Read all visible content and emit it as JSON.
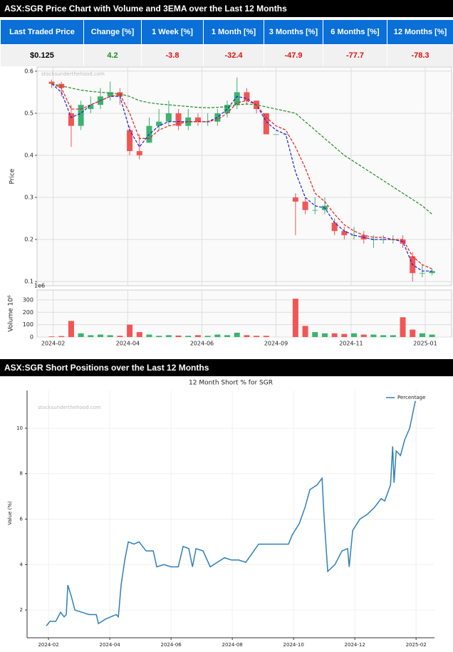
{
  "sections": [
    "ASX:SGR Price Chart with Volume and 3EMA over the Last 12 Months",
    "ASX:SGR Short Positions over the Last 12 Months"
  ],
  "table": {
    "headers": [
      "Last Traded Price",
      "Change [%]",
      "1 Week [%]",
      "1 Month [%]",
      "3 Months [%]",
      "6 Months [%]",
      "12 Months [%]"
    ],
    "rows": [
      [
        "$0.125",
        "4.2",
        "-3.8",
        "-32.4",
        "-47.9",
        "-77.7",
        "-78.3"
      ]
    ]
  },
  "chart_data": [
    {
      "type": "candlestick",
      "ylabel": "Price",
      "watermark": "stocksunderthehood.com",
      "up_color": "#3cb371",
      "down_color": "#f25555",
      "open": [
        0.575,
        0.57,
        0.5,
        0.47,
        0.51,
        0.52,
        0.54,
        0.55,
        0.46,
        0.41,
        0.43,
        0.47,
        0.48,
        0.5,
        0.47,
        0.49,
        0.48,
        0.48,
        0.5,
        0.52,
        0.55,
        0.53,
        0.5,
        0.45,
        0.45,
        0.3,
        0.29,
        0.27,
        0.27,
        0.24,
        0.22,
        0.21,
        0.21,
        0.2,
        0.2,
        0.2,
        0.2,
        0.16,
        0.12,
        0.12
      ],
      "high": [
        0.58,
        0.575,
        0.52,
        0.53,
        0.54,
        0.56,
        0.575,
        0.56,
        0.47,
        0.45,
        0.49,
        0.51,
        0.53,
        0.51,
        0.51,
        0.5,
        0.5,
        0.51,
        0.53,
        0.585,
        0.56,
        0.53,
        0.5,
        0.45,
        0.45,
        0.31,
        0.3,
        0.3,
        0.3,
        0.25,
        0.23,
        0.23,
        0.22,
        0.21,
        0.21,
        0.21,
        0.21,
        0.17,
        0.14,
        0.13
      ],
      "low": [
        0.56,
        0.54,
        0.42,
        0.46,
        0.5,
        0.51,
        0.53,
        0.52,
        0.4,
        0.39,
        0.43,
        0.46,
        0.47,
        0.46,
        0.46,
        0.47,
        0.47,
        0.47,
        0.49,
        0.51,
        0.52,
        0.5,
        0.45,
        0.45,
        0.45,
        0.21,
        0.26,
        0.26,
        0.26,
        0.21,
        0.2,
        0.2,
        0.19,
        0.18,
        0.19,
        0.19,
        0.18,
        0.1,
        0.11,
        0.115
      ],
      "close": [
        0.57,
        0.56,
        0.47,
        0.52,
        0.52,
        0.54,
        0.55,
        0.54,
        0.41,
        0.4,
        0.47,
        0.48,
        0.5,
        0.47,
        0.49,
        0.48,
        0.48,
        0.5,
        0.52,
        0.55,
        0.53,
        0.51,
        0.45,
        0.45,
        0.45,
        0.29,
        0.27,
        0.27,
        0.28,
        0.22,
        0.21,
        0.21,
        0.2,
        0.2,
        0.2,
        0.2,
        0.19,
        0.12,
        0.12,
        0.125
      ],
      "ema": [
        {
          "color": "#1f1fd6",
          "values": [
            0.57,
            0.55,
            0.49,
            0.5,
            0.52,
            0.53,
            0.54,
            0.54,
            0.46,
            0.42,
            0.45,
            0.47,
            0.48,
            0.48,
            0.48,
            0.48,
            0.48,
            0.49,
            0.51,
            0.54,
            0.535,
            0.52,
            0.48,
            0.46,
            0.45,
            0.36,
            0.3,
            0.28,
            0.275,
            0.24,
            0.22,
            0.21,
            0.205,
            0.2,
            0.2,
            0.2,
            0.195,
            0.14,
            0.125,
            0.125
          ]
        },
        {
          "color": "#e01f1f",
          "values": [
            0.57,
            0.56,
            0.51,
            0.51,
            0.52,
            0.53,
            0.54,
            0.545,
            0.5,
            0.44,
            0.44,
            0.46,
            0.47,
            0.475,
            0.48,
            0.48,
            0.48,
            0.485,
            0.5,
            0.525,
            0.53,
            0.52,
            0.49,
            0.47,
            0.46,
            0.42,
            0.37,
            0.31,
            0.29,
            0.26,
            0.235,
            0.22,
            0.21,
            0.205,
            0.205,
            0.2,
            0.2,
            0.16,
            0.14,
            0.13
          ]
        },
        {
          "color": "#228b22",
          "values": [
            0.57,
            0.565,
            0.56,
            0.555,
            0.552,
            0.55,
            0.548,
            0.546,
            0.54,
            0.53,
            0.525,
            0.522,
            0.52,
            0.518,
            0.516,
            0.514,
            0.513,
            0.514,
            0.516,
            0.52,
            0.522,
            0.52,
            0.515,
            0.51,
            0.505,
            0.5,
            0.48,
            0.46,
            0.44,
            0.42,
            0.4,
            0.385,
            0.37,
            0.355,
            0.34,
            0.325,
            0.31,
            0.295,
            0.28,
            0.26
          ]
        }
      ],
      "xlim": [
        -1.5,
        41
      ],
      "ylim": [
        0.09,
        0.61
      ],
      "yticks": [
        0.1,
        0.2,
        0.3,
        0.4,
        0.5,
        0.6
      ],
      "grid": true
    },
    {
      "type": "bar",
      "ylabel": "Volume  10⁶",
      "offset_label": "1e6",
      "values": [
        5,
        8,
        130,
        30,
        15,
        20,
        15,
        10,
        100,
        40,
        20,
        10,
        15,
        12,
        10,
        15,
        10,
        20,
        15,
        35,
        15,
        10,
        10,
        0,
        0,
        310,
        90,
        40,
        30,
        30,
        25,
        30,
        20,
        20,
        15,
        15,
        160,
        60,
        30,
        20
      ],
      "xlim": [
        -1.5,
        41
      ],
      "ylim": [
        0,
        380
      ],
      "yticks": [
        0,
        100,
        200,
        300
      ],
      "grid": true,
      "xticks": [
        {
          "value": 0.15,
          "label": "2024-02"
        },
        {
          "value": 7.8,
          "label": "2024-04"
        },
        {
          "value": 15.4,
          "label": "2024-06"
        },
        {
          "value": 23.0,
          "label": "2024-09"
        },
        {
          "value": 30.7,
          "label": "2024-11"
        },
        {
          "value": 38.3,
          "label": "2025-01"
        }
      ]
    },
    {
      "type": "line",
      "title": "12 Month Short % for SGR",
      "ylabel": "Value (%)",
      "watermark": "stocksunderthehood.com",
      "series": [
        {
          "name": "Percentage",
          "color": "#2f7fb8",
          "x": [
            1.86,
            2.09,
            2.47,
            2.79,
            3.02,
            3.16,
            3.26,
            3.49,
            3.72,
            4.19,
            4.65,
            5.12,
            5.26,
            5.72,
            6.42,
            6.56,
            6.74,
            6.98,
            7.21,
            7.58,
            7.91,
            8.37,
            8.84,
            9.07,
            9.53,
            10.0,
            10.47,
            10.79,
            11.16,
            11.4,
            11.63,
            12.09,
            12.56,
            13.02,
            13.49,
            13.95,
            14.42,
            14.88,
            15.72,
            16.98,
            17.67,
            17.91,
            18.37,
            18.74,
            19.07,
            19.53,
            19.86,
            20.0,
            20.23,
            20.7,
            21.16,
            21.53,
            21.63,
            21.86,
            22.33,
            22.79,
            23.26,
            23.72,
            23.95,
            24.33,
            24.47,
            24.56,
            24.7,
            24.98,
            25.26,
            25.58,
            25.95
          ],
          "values": [
            1.3,
            1.5,
            1.5,
            1.9,
            1.7,
            1.8,
            3.1,
            2.6,
            2.0,
            1.9,
            1.8,
            1.8,
            1.4,
            1.6,
            1.8,
            1.7,
            3.1,
            4.2,
            5.0,
            4.9,
            5.0,
            4.6,
            4.6,
            3.9,
            4.0,
            3.9,
            3.9,
            4.8,
            4.7,
            3.9,
            4.7,
            4.6,
            3.9,
            4.1,
            4.3,
            4.2,
            4.2,
            4.1,
            4.9,
            4.9,
            4.9,
            5.3,
            5.8,
            6.5,
            7.3,
            7.5,
            7.8,
            6.0,
            3.7,
            4.0,
            4.6,
            4.7,
            3.9,
            5.5,
            6.0,
            6.2,
            6.5,
            6.9,
            6.8,
            7.5,
            9.2,
            7.6,
            9.0,
            8.8,
            9.5,
            10.0,
            11.2
          ]
        }
      ],
      "xlim": [
        0.6,
        27.2
      ],
      "ylim": [
        0.78,
        11.66
      ],
      "yticks": [
        2,
        4,
        6,
        8,
        10
      ],
      "grid": true,
      "legend": "upper right",
      "xticks": [
        {
          "value": 2,
          "label": "2024-02"
        },
        {
          "value": 6,
          "label": "2024-04"
        },
        {
          "value": 10,
          "label": "2024-06"
        },
        {
          "value": 14,
          "label": "2024-08"
        },
        {
          "value": 18,
          "label": "2024-10"
        },
        {
          "value": 22,
          "label": "2024-12"
        },
        {
          "value": 26,
          "label": "2025-02"
        }
      ]
    }
  ]
}
